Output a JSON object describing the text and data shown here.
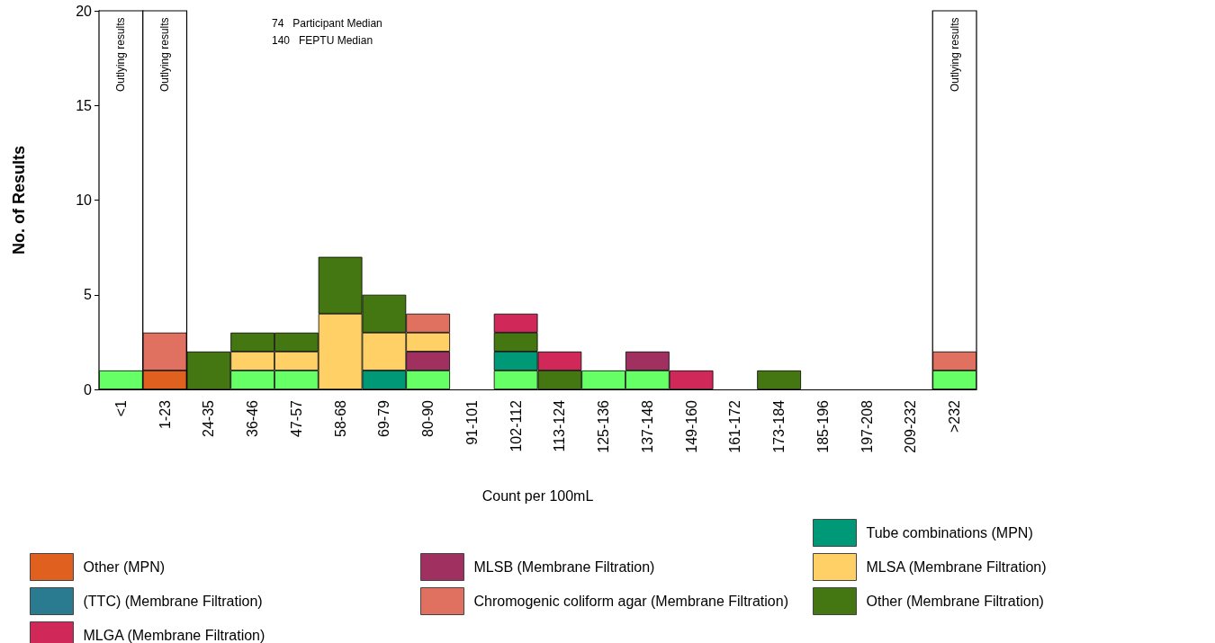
{
  "chart_data": {
    "type": "bar",
    "stacked": true,
    "xlabel": "Count per 100mL",
    "ylabel": "No. of Results",
    "ylim": [
      0,
      20
    ],
    "yticks": [
      0,
      5,
      10,
      15,
      20
    ],
    "grid": false,
    "legend": "bottom",
    "categories": [
      "<1",
      "1-23",
      "24-35",
      "36-46",
      "47-57",
      "58-68",
      "69-79",
      "80-90",
      "91-101",
      "102-112",
      "113-124",
      "125-136",
      "137-148",
      "149-160",
      "161-172",
      "173-184",
      "185-196",
      "197-208",
      "209-232",
      ">232"
    ],
    "series": [
      {
        "color": "#66ff66",
        "values": [
          1,
          0,
          0,
          1,
          1,
          0,
          0,
          1,
          0,
          1,
          0,
          1,
          1,
          0,
          0,
          0,
          0,
          0,
          0,
          1
        ]
      },
      {
        "name": "Other (MPN)",
        "color": "#e06020",
        "values": [
          0,
          1,
          0,
          0,
          0,
          0,
          0,
          0,
          0,
          0,
          0,
          0,
          0,
          0,
          0,
          0,
          0,
          0,
          0,
          0
        ]
      },
      {
        "name": "Tube combinations (MPN)",
        "color": "#009977",
        "values": [
          0,
          0,
          0,
          0,
          0,
          0,
          1,
          0,
          0,
          1,
          0,
          0,
          0,
          0,
          0,
          0,
          0,
          0,
          0,
          0
        ]
      },
      {
        "name": "MLSB (Membrane Filtration)",
        "color": "#a03060",
        "values": [
          0,
          0,
          0,
          0,
          0,
          0,
          0,
          1,
          0,
          0,
          0,
          0,
          1,
          0,
          0,
          0,
          0,
          0,
          0,
          0
        ]
      },
      {
        "name": "MLSA (Membrane Filtration)",
        "color": "#ffd066",
        "values": [
          0,
          0,
          0,
          1,
          1,
          4,
          2,
          1,
          0,
          0,
          0,
          0,
          0,
          0,
          0,
          0,
          0,
          0,
          0,
          0
        ]
      },
      {
        "name": "Other (Membrane Filtration)",
        "color": "#447711",
        "values": [
          0,
          0,
          2,
          1,
          1,
          3,
          2,
          0,
          0,
          1,
          1,
          0,
          0,
          0,
          0,
          1,
          0,
          0,
          0,
          0
        ]
      },
      {
        "name": "Chromogenic coliform agar (Membrane Filtration)",
        "color": "#e07060",
        "values": [
          0,
          2,
          0,
          0,
          0,
          0,
          0,
          1,
          0,
          0,
          0,
          0,
          0,
          0,
          0,
          0,
          0,
          0,
          0,
          1
        ]
      },
      {
        "name": "MLGA (Membrane Filtration)",
        "color": "#d02858",
        "values": [
          0,
          0,
          0,
          0,
          0,
          0,
          0,
          0,
          0,
          1,
          1,
          0,
          0,
          1,
          0,
          0,
          0,
          0,
          0,
          0
        ]
      },
      {
        "color": "#f0a860",
        "values": [
          0,
          0,
          0,
          0,
          0,
          0,
          0,
          0,
          0,
          0,
          0,
          0,
          0,
          0,
          0,
          0,
          0,
          0,
          0,
          0
        ]
      },
      {
        "name": "(TTC) (Membrane Filtration)",
        "color": "#2a7a90",
        "values": [
          0,
          0,
          0,
          0,
          0,
          0,
          0,
          0,
          0,
          0,
          0,
          0,
          0,
          0,
          0,
          0,
          0,
          0,
          0,
          0
        ]
      }
    ],
    "bands": [
      {
        "axis": "x",
        "from": "<1",
        "to": "<1",
        "label": "Outlying results",
        "color": "#ffffff"
      },
      {
        "axis": "x",
        "from": "1-23",
        "to": "1-23",
        "label": "Outlying results",
        "color": "#ffffff"
      },
      {
        "axis": "x",
        "from": ">232",
        "to": ">232",
        "label": "Outlying results",
        "color": "#ffffff"
      }
    ],
    "annotations": [
      "74   Participant Median",
      "140   FEPTU Median"
    ]
  }
}
